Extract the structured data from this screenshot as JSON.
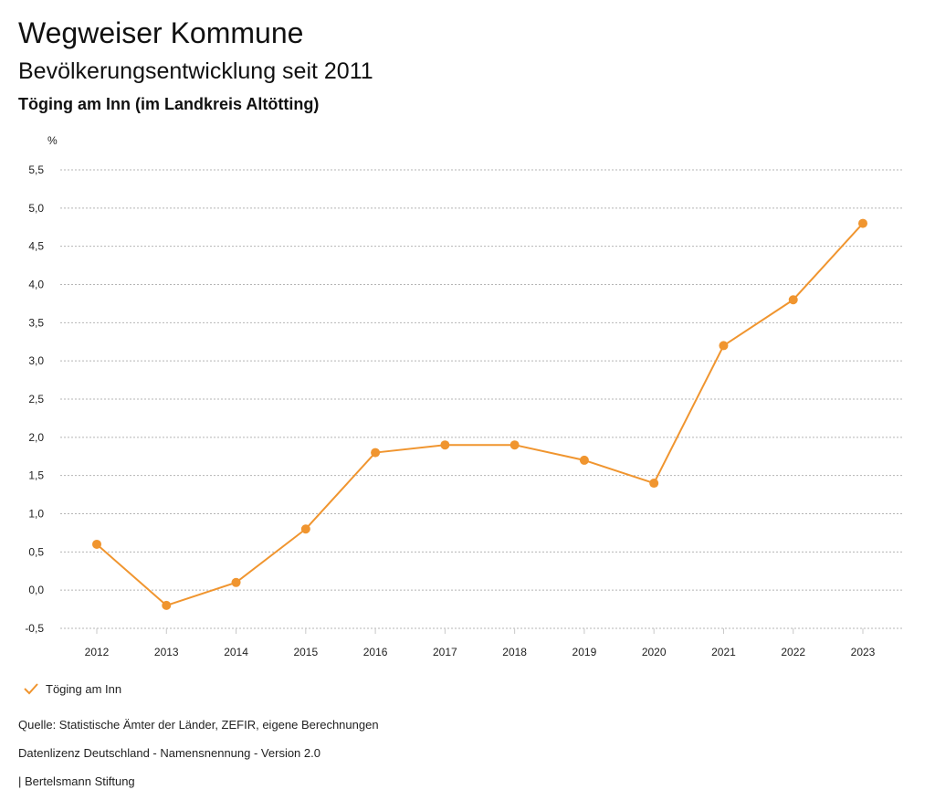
{
  "header": {
    "title": "Wegweiser Kommune",
    "subtitle": "Bevölkerungsentwicklung seit 2011",
    "region": "Töging am Inn (im Landkreis Altötting)"
  },
  "chart_data": {
    "type": "line",
    "ylabel": "%",
    "x": [
      "2012",
      "2013",
      "2014",
      "2015",
      "2016",
      "2017",
      "2018",
      "2019",
      "2020",
      "2021",
      "2022",
      "2023"
    ],
    "y_ticks": [
      "5,5",
      "5,0",
      "4,5",
      "4,0",
      "3,5",
      "3,0",
      "2,5",
      "2,0",
      "1,5",
      "1,0",
      "0,5",
      "0,0",
      "-0,5"
    ],
    "ylim": [
      -0.5,
      5.5
    ],
    "grid": true,
    "legend_position": "bottom-left",
    "series": [
      {
        "name": "Töging am Inn",
        "color": "#f0952f",
        "values": [
          0.6,
          -0.2,
          0.1,
          0.8,
          1.8,
          1.9,
          1.9,
          1.7,
          1.4,
          3.2,
          3.8,
          4.8
        ]
      }
    ]
  },
  "legend": {
    "label": "Töging am Inn",
    "icon": "check-icon"
  },
  "footer": {
    "source": "Quelle: Statistische Ämter der Länder, ZEFIR, eigene Berechnungen",
    "license": "Datenlizenz Deutschland - Namensnennung - Version 2.0",
    "publisher": "| Bertelsmann Stiftung"
  }
}
